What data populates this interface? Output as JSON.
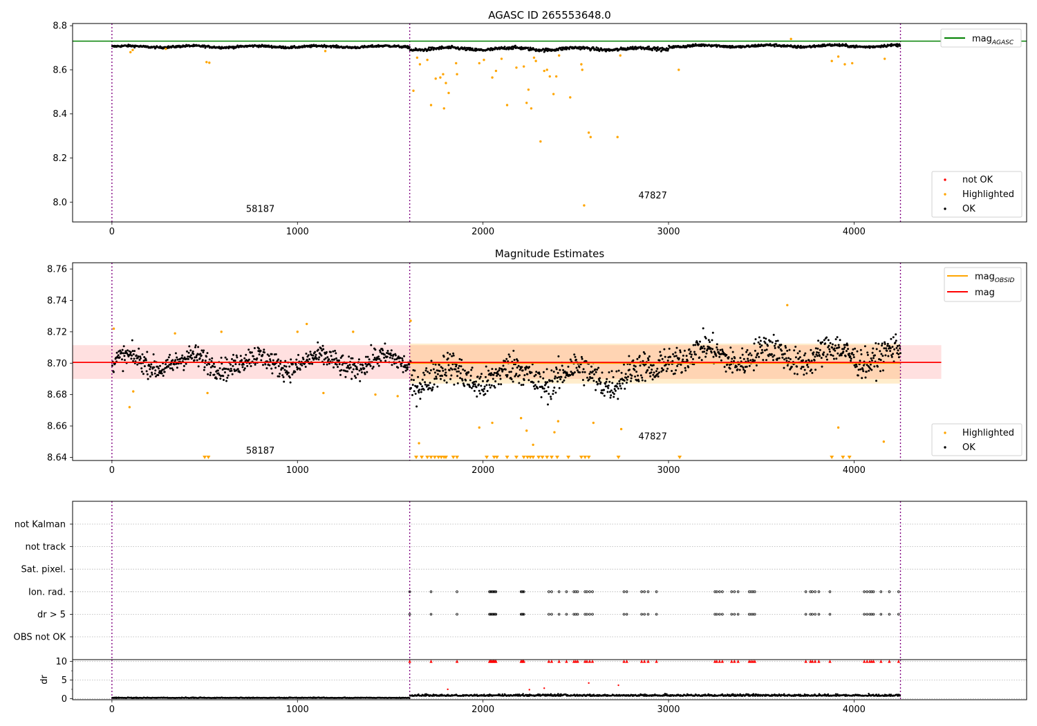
{
  "chart_data": [
    {
      "type": "scatter",
      "title": "AGASC ID 265553648.0",
      "xlim": [
        -212,
        4930
      ],
      "ylim": [
        7.91,
        8.81
      ],
      "yticks": [
        8.0,
        8.2,
        8.4,
        8.6,
        8.8
      ],
      "xticks": [
        0,
        1000,
        2000,
        3000,
        4000
      ],
      "vlines": [
        0,
        1605,
        4250
      ],
      "hlines": [
        {
          "name": "mag_AGASC",
          "y": 8.73,
          "color": "#008000"
        }
      ],
      "annotations": [
        {
          "text": "58187",
          "x": 800,
          "y": 7.955
        },
        {
          "text": "47827",
          "x": 2915,
          "y": 8.016
        }
      ],
      "legend_upper": [
        {
          "label": "mag",
          "sub": "AGASC",
          "color": "#008000",
          "kind": "line"
        }
      ],
      "legend_lower": [
        {
          "label": "not OK",
          "color": "#ff0000",
          "kind": "dot"
        },
        {
          "label": "Highlighted",
          "color": "#ffa500",
          "kind": "dot"
        },
        {
          "label": "OK",
          "color": "#000000",
          "kind": "dot"
        }
      ],
      "highlighted_points": [
        [
          100,
          8.68
        ],
        [
          112,
          8.69
        ],
        [
          290,
          8.695
        ],
        [
          510,
          8.635
        ],
        [
          525,
          8.632
        ],
        [
          1150,
          8.685
        ],
        [
          1625,
          8.505
        ],
        [
          1645,
          8.655
        ],
        [
          1660,
          8.625
        ],
        [
          1700,
          8.645
        ],
        [
          1720,
          8.44
        ],
        [
          1745,
          8.56
        ],
        [
          1770,
          8.565
        ],
        [
          1785,
          8.58
        ],
        [
          1790,
          8.425
        ],
        [
          1800,
          8.54
        ],
        [
          1815,
          8.495
        ],
        [
          1855,
          8.63
        ],
        [
          1860,
          8.58
        ],
        [
          1980,
          8.63
        ],
        [
          2005,
          8.645
        ],
        [
          2050,
          8.565
        ],
        [
          2070,
          8.595
        ],
        [
          2100,
          8.65
        ],
        [
          2130,
          8.44
        ],
        [
          2180,
          8.61
        ],
        [
          2220,
          8.615
        ],
        [
          2235,
          8.45
        ],
        [
          2245,
          8.51
        ],
        [
          2260,
          8.425
        ],
        [
          2275,
          8.655
        ],
        [
          2285,
          8.64
        ],
        [
          2310,
          8.275
        ],
        [
          2330,
          8.595
        ],
        [
          2345,
          8.6
        ],
        [
          2360,
          8.57
        ],
        [
          2380,
          8.49
        ],
        [
          2395,
          8.57
        ],
        [
          2410,
          8.665
        ],
        [
          2470,
          8.475
        ],
        [
          2530,
          8.625
        ],
        [
          2535,
          8.6
        ],
        [
          2545,
          7.985
        ],
        [
          2570,
          8.315
        ],
        [
          2580,
          8.295
        ],
        [
          2725,
          8.295
        ],
        [
          2740,
          8.665
        ],
        [
          3055,
          8.6
        ],
        [
          3660,
          8.74
        ],
        [
          3880,
          8.64
        ],
        [
          3915,
          8.66
        ],
        [
          3950,
          8.625
        ],
        [
          3990,
          8.63
        ],
        [
          4165,
          8.65
        ]
      ],
      "ok_bands": [
        {
          "x": [
            0,
            1605
          ],
          "y": 8.705,
          "spread": 0.006
        },
        {
          "x": [
            1605,
            3000
          ],
          "y": 8.695,
          "spread": 0.009
        },
        {
          "x": [
            3000,
            4250
          ],
          "y": 8.708,
          "spread": 0.007
        }
      ]
    },
    {
      "type": "scatter",
      "title": "Magnitude Estimates",
      "xlim": [
        -212,
        4930
      ],
      "ylim": [
        8.638,
        8.764
      ],
      "yticks": [
        8.64,
        8.66,
        8.68,
        8.7,
        8.72,
        8.74,
        8.76
      ],
      "xticks": [
        0,
        1000,
        2000,
        3000,
        4000
      ],
      "vlines": [
        0,
        1605,
        4250
      ],
      "mag": {
        "name": "mag",
        "y": 8.7005,
        "band": [
          8.69,
          8.7115
        ],
        "x": [
          -212,
          4470
        ],
        "color": "#ff0000"
      },
      "mag_obsid": [
        {
          "x": [
            0,
            1605
          ],
          "y": 8.7005
        },
        {
          "x": [
            1605,
            4250
          ],
          "y": 8.7,
          "band": [
            8.687,
            8.7125
          ]
        }
      ],
      "annotations": [
        {
          "text": "58187",
          "x": 800,
          "y": 8.6425
        },
        {
          "text": "47827",
          "x": 2915,
          "y": 8.6515
        }
      ],
      "legend_upper": [
        {
          "label": "mag",
          "sub": "OBSID",
          "color": "#ffa500",
          "kind": "line"
        },
        {
          "label": "mag",
          "sub": "",
          "color": "#ff0000",
          "kind": "line"
        }
      ],
      "legend_lower": [
        {
          "label": "Highlighted",
          "color": "#ffa500",
          "kind": "dot"
        },
        {
          "label": "OK",
          "color": "#000000",
          "kind": "dot"
        }
      ],
      "highlighted_points": [
        [
          10,
          8.722
        ],
        [
          95,
          8.672
        ],
        [
          115,
          8.682
        ],
        [
          340,
          8.719
        ],
        [
          515,
          8.681
        ],
        [
          590,
          8.72
        ],
        [
          1000,
          8.72
        ],
        [
          1050,
          8.725
        ],
        [
          1140,
          8.681
        ],
        [
          1300,
          8.72
        ],
        [
          1420,
          8.68
        ],
        [
          1540,
          8.679
        ],
        [
          1610,
          8.727
        ],
        [
          1655,
          8.649
        ],
        [
          1980,
          8.659
        ],
        [
          2050,
          8.662
        ],
        [
          2205,
          8.665
        ],
        [
          2235,
          8.657
        ],
        [
          2270,
          8.648
        ],
        [
          2385,
          8.656
        ],
        [
          2405,
          8.663
        ],
        [
          2595,
          8.662
        ],
        [
          2745,
          8.658
        ],
        [
          3640,
          8.737
        ],
        [
          3915,
          8.659
        ],
        [
          4160,
          8.65
        ]
      ],
      "lower_limit_markers": [
        500,
        520,
        1640,
        1670,
        1700,
        1720,
        1740,
        1760,
        1775,
        1790,
        1800,
        1840,
        1860,
        2020,
        2060,
        2075,
        2130,
        2180,
        2220,
        2240,
        2255,
        2270,
        2300,
        2320,
        2345,
        2370,
        2400,
        2460,
        2530,
        2550,
        2570,
        2730,
        3060,
        3880,
        3940,
        3975
      ]
    },
    {
      "type": "scatter",
      "title": "",
      "xlim": [
        -212,
        4930
      ],
      "xticks": [
        0,
        1000,
        2000,
        3000,
        4000
      ],
      "vlines": [
        0,
        1605,
        4250
      ],
      "flag_rows": [
        "not Kalman",
        "not track",
        "Sat. pixel.",
        "Ion. rad.",
        "dr > 5",
        "OBS not OK"
      ],
      "flag_points": {
        "Ion. rad.": [
          1605,
          1720,
          1860,
          2035,
          2040,
          2045,
          2050,
          2055,
          2060,
          2065,
          2070,
          2205,
          2210,
          2215,
          2220,
          2355,
          2370,
          2410,
          2450,
          2490,
          2500,
          2510,
          2550,
          2560,
          2575,
          2590,
          2760,
          2775,
          2855,
          2870,
          2890,
          2935,
          3250,
          3260,
          3275,
          3290,
          3340,
          3355,
          3375,
          3435,
          3445,
          3455,
          3465,
          3740,
          3765,
          3775,
          3790,
          3810,
          3870,
          4055,
          4070,
          4085,
          4095,
          4105,
          4145,
          4190,
          4240
        ],
        "dr > 5": [
          1605,
          1720,
          1860,
          2035,
          2040,
          2045,
          2050,
          2055,
          2060,
          2065,
          2070,
          2205,
          2210,
          2215,
          2220,
          2355,
          2370,
          2410,
          2450,
          2490,
          2500,
          2510,
          2550,
          2560,
          2575,
          2590,
          2760,
          2775,
          2855,
          2870,
          2890,
          2935,
          3250,
          3260,
          3275,
          3290,
          3340,
          3355,
          3375,
          3435,
          3445,
          3455,
          3465,
          3740,
          3765,
          3775,
          3790,
          3810,
          3870,
          4055,
          4070,
          4085,
          4095,
          4105,
          4145,
          4190,
          4240
        ]
      }
    },
    {
      "type": "scatter",
      "title": "",
      "ylabel": "dr",
      "xlim": [
        -212,
        4930
      ],
      "ylim": [
        -0.3,
        10.5
      ],
      "yticks": [
        0,
        5,
        10
      ],
      "xticks": [
        0,
        1000,
        2000,
        3000,
        4000
      ],
      "vlines": [
        0,
        1605,
        4250
      ],
      "capped_points": [
        1605,
        1720,
        1860,
        2035,
        2040,
        2045,
        2050,
        2055,
        2060,
        2065,
        2070,
        2205,
        2210,
        2215,
        2220,
        2355,
        2370,
        2410,
        2450,
        2490,
        2500,
        2510,
        2550,
        2560,
        2575,
        2590,
        2760,
        2775,
        2855,
        2870,
        2890,
        2935,
        3250,
        3260,
        3275,
        3290,
        3340,
        3355,
        3375,
        3435,
        3445,
        3455,
        3465,
        3740,
        3765,
        3775,
        3790,
        3810,
        3870,
        4055,
        4070,
        4085,
        4095,
        4105,
        4145,
        4190,
        4240
      ],
      "outliers": [
        [
          2570,
          4.2
        ],
        [
          2730,
          3.6
        ],
        [
          2250,
          2.4
        ],
        [
          2330,
          2.8
        ],
        [
          1810,
          2.5
        ]
      ]
    }
  ]
}
